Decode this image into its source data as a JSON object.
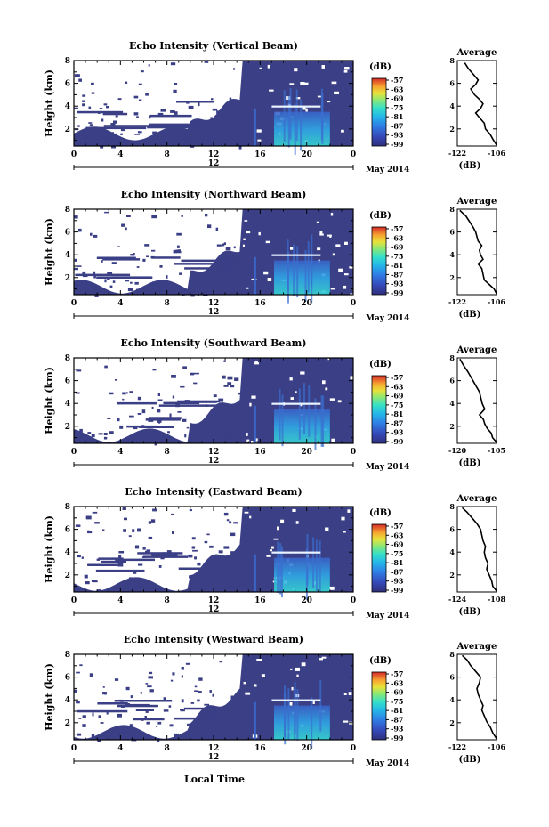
{
  "figure": {
    "xlabel": "Local Time",
    "date_label": "May 2014",
    "colorbar_unit": "(dB)",
    "colorbar_ticks": [
      "-57",
      "-63",
      "-69",
      "-75",
      "-81",
      "-87",
      "-93",
      "-99"
    ],
    "x_ticks": [
      "0",
      "4",
      "8",
      "12",
      "16",
      "20",
      "0"
    ],
    "date_tick": "12",
    "ylabel": "Height (km)",
    "y_ticks": [
      "2",
      "4",
      "6",
      "8"
    ],
    "avg_title": "Average",
    "avg_xlabel": "(dB)",
    "avg_y_ticks": [
      "2",
      "4",
      "6",
      "8"
    ]
  },
  "chart_data": [
    {
      "type": "heatmap",
      "title": "Echo Intensity (Vertical Beam)",
      "x_range": [
        0,
        24
      ],
      "y_range": [
        0.5,
        8
      ],
      "colorbar_range": [
        -99,
        -54
      ],
      "avg": {
        "title": "Average",
        "x_ticks": [
          "-122",
          "-106"
        ],
        "xlim": [
          -122,
          -106
        ],
        "points": [
          [
            -106,
            0.6
          ],
          [
            -107.5,
            1.1
          ],
          [
            -108.5,
            1.5
          ],
          [
            -110.5,
            2.0
          ],
          [
            -111,
            2.5
          ],
          [
            -113,
            3.0
          ],
          [
            -114.5,
            3.4
          ],
          [
            -112.5,
            3.8
          ],
          [
            -111.5,
            4.2
          ],
          [
            -113,
            4.6
          ],
          [
            -115,
            5.0
          ],
          [
            -116.5,
            5.5
          ],
          [
            -114.5,
            5.9
          ],
          [
            -113.5,
            6.3
          ],
          [
            -115.5,
            6.8
          ],
          [
            -117.5,
            7.3
          ],
          [
            -119,
            7.8
          ]
        ]
      }
    },
    {
      "type": "heatmap",
      "title": "Echo Intensity (Northward Beam)",
      "x_range": [
        0,
        24
      ],
      "y_range": [
        0.5,
        8
      ],
      "colorbar_range": [
        -99,
        -54
      ],
      "avg": {
        "title": "Average",
        "x_ticks": [
          "-122",
          "-106"
        ],
        "xlim": [
          -122,
          -106
        ],
        "points": [
          [
            -106,
            0.6
          ],
          [
            -107,
            1.0
          ],
          [
            -109,
            1.4
          ],
          [
            -111,
            1.8
          ],
          [
            -111.5,
            2.3
          ],
          [
            -112,
            2.8
          ],
          [
            -113.5,
            3.2
          ],
          [
            -111.5,
            3.6
          ],
          [
            -112.5,
            4.0
          ],
          [
            -113,
            4.4
          ],
          [
            -112,
            4.8
          ],
          [
            -113.5,
            5.2
          ],
          [
            -114,
            5.6
          ],
          [
            -114.5,
            6.0
          ],
          [
            -115.5,
            6.4
          ],
          [
            -117,
            6.9
          ],
          [
            -118.5,
            7.4
          ],
          [
            -121,
            7.9
          ]
        ]
      }
    },
    {
      "type": "heatmap",
      "title": "Echo Intensity (Southward Beam)",
      "x_range": [
        0,
        24
      ],
      "y_range": [
        0.5,
        8
      ],
      "colorbar_range": [
        -99,
        -54
      ],
      "avg": {
        "title": "Average",
        "x_ticks": [
          "-120",
          "-105"
        ],
        "xlim": [
          -120,
          -105
        ],
        "points": [
          [
            -105,
            0.6
          ],
          [
            -106.5,
            1.0
          ],
          [
            -107,
            1.4
          ],
          [
            -108.5,
            1.8
          ],
          [
            -109.5,
            2.2
          ],
          [
            -110,
            2.6
          ],
          [
            -111.5,
            3.0
          ],
          [
            -109.5,
            3.5
          ],
          [
            -110.5,
            4.0
          ],
          [
            -111,
            4.5
          ],
          [
            -111.5,
            5.0
          ],
          [
            -113,
            5.6
          ],
          [
            -114.5,
            6.2
          ],
          [
            -116,
            6.8
          ],
          [
            -117.5,
            7.3
          ],
          [
            -119,
            7.9
          ]
        ]
      }
    },
    {
      "type": "heatmap",
      "title": "Echo Intensity (Eastward Beam)",
      "x_range": [
        0,
        24
      ],
      "y_range": [
        0.5,
        8
      ],
      "colorbar_range": [
        -99,
        -54
      ],
      "avg": {
        "title": "Average",
        "x_ticks": [
          "-124",
          "-108"
        ],
        "xlim": [
          -124,
          -108
        ],
        "points": [
          [
            -108,
            0.6
          ],
          [
            -109.5,
            1.0
          ],
          [
            -110,
            1.5
          ],
          [
            -111,
            2.0
          ],
          [
            -112,
            2.5
          ],
          [
            -111.5,
            3.0
          ],
          [
            -112.5,
            3.5
          ],
          [
            -113,
            4.0
          ],
          [
            -112.5,
            4.5
          ],
          [
            -113.5,
            5.0
          ],
          [
            -114,
            5.5
          ],
          [
            -114.5,
            6.0
          ],
          [
            -116,
            6.5
          ],
          [
            -118,
            7.0
          ],
          [
            -120,
            7.5
          ],
          [
            -122,
            7.9
          ]
        ]
      }
    },
    {
      "type": "heatmap",
      "title": "Echo Intensity (Westward Beam)",
      "x_range": [
        0,
        24
      ],
      "y_range": [
        0.5,
        8
      ],
      "colorbar_range": [
        -99,
        -54
      ],
      "avg": {
        "title": "Average",
        "x_ticks": [
          "-122",
          "-106"
        ],
        "xlim": [
          -122,
          -106
        ],
        "points": [
          [
            -106,
            0.6
          ],
          [
            -107.5,
            1.1
          ],
          [
            -108.5,
            1.6
          ],
          [
            -110,
            2.1
          ],
          [
            -111,
            2.6
          ],
          [
            -112,
            3.1
          ],
          [
            -111.5,
            3.5
          ],
          [
            -112.5,
            4.0
          ],
          [
            -113.5,
            4.5
          ],
          [
            -114,
            5.0
          ],
          [
            -113,
            5.5
          ],
          [
            -112.5,
            6.0
          ],
          [
            -114.5,
            6.5
          ],
          [
            -116.5,
            7.0
          ],
          [
            -118,
            7.5
          ],
          [
            -120,
            7.9
          ]
        ]
      }
    }
  ],
  "colors": {
    "background_echo": "#3b3f86",
    "frame": "#000000",
    "colormap": [
      "#2e2f7a",
      "#3548b8",
      "#2f7fe6",
      "#24b8e8",
      "#35e0c8",
      "#8ce873",
      "#e8e23a",
      "#f7a431",
      "#f0522d",
      "#d42a27"
    ]
  }
}
